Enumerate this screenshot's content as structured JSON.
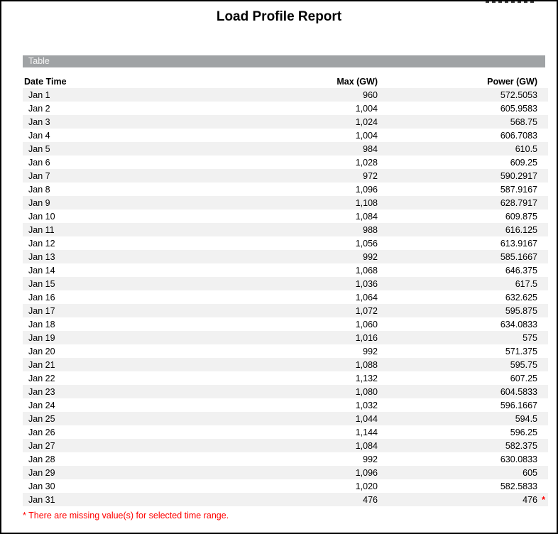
{
  "report": {
    "title": "Load Profile Report",
    "section_label": "Table",
    "table": {
      "columns": [
        "Date Time",
        "Max (GW)",
        "Power (GW)"
      ],
      "rows": [
        {
          "date": "Jan 1",
          "max": "960",
          "power": "572.5053"
        },
        {
          "date": "Jan 2",
          "max": "1,004",
          "power": "605.9583"
        },
        {
          "date": "Jan 3",
          "max": "1,024",
          "power": "568.75"
        },
        {
          "date": "Jan 4",
          "max": "1,004",
          "power": "606.7083"
        },
        {
          "date": "Jan 5",
          "max": "984",
          "power": "610.5"
        },
        {
          "date": "Jan 6",
          "max": "1,028",
          "power": "609.25"
        },
        {
          "date": "Jan 7",
          "max": "972",
          "power": "590.2917"
        },
        {
          "date": "Jan 8",
          "max": "1,096",
          "power": "587.9167"
        },
        {
          "date": "Jan 9",
          "max": "1,108",
          "power": "628.7917"
        },
        {
          "date": "Jan 10",
          "max": "1,084",
          "power": "609.875"
        },
        {
          "date": "Jan 11",
          "max": "988",
          "power": "616.125"
        },
        {
          "date": "Jan 12",
          "max": "1,056",
          "power": "613.9167"
        },
        {
          "date": "Jan 13",
          "max": "992",
          "power": "585.1667"
        },
        {
          "date": "Jan 14",
          "max": "1,068",
          "power": "646.375"
        },
        {
          "date": "Jan 15",
          "max": "1,036",
          "power": "617.5"
        },
        {
          "date": "Jan 16",
          "max": "1,064",
          "power": "632.625"
        },
        {
          "date": "Jan 17",
          "max": "1,072",
          "power": "595.875"
        },
        {
          "date": "Jan 18",
          "max": "1,060",
          "power": "634.0833"
        },
        {
          "date": "Jan 19",
          "max": "1,016",
          "power": "575"
        },
        {
          "date": "Jan 20",
          "max": "992",
          "power": "571.375"
        },
        {
          "date": "Jan 21",
          "max": "1,088",
          "power": "595.75"
        },
        {
          "date": "Jan 22",
          "max": "1,132",
          "power": "607.25"
        },
        {
          "date": "Jan 23",
          "max": "1,080",
          "power": "604.5833"
        },
        {
          "date": "Jan 24",
          "max": "1,032",
          "power": "596.1667"
        },
        {
          "date": "Jan 25",
          "max": "1,044",
          "power": "594.5"
        },
        {
          "date": "Jan 26",
          "max": "1,144",
          "power": "596.25"
        },
        {
          "date": "Jan 27",
          "max": "1,084",
          "power": "582.375"
        },
        {
          "date": "Jan 28",
          "max": "992",
          "power": "630.0833"
        },
        {
          "date": "Jan 29",
          "max": "1,096",
          "power": "605"
        },
        {
          "date": "Jan 30",
          "max": "1,020",
          "power": "582.5833"
        },
        {
          "date": "Jan 31",
          "max": "476",
          "power": "476",
          "flag": "*"
        }
      ]
    },
    "footnote": "* There are missing value(s) for selected time range.",
    "colors": {
      "section_bar_bg": "#A0A3A5",
      "row_stripe": "#F1F1F1",
      "footnote_red": "#FF0000",
      "border": "#000000"
    }
  }
}
